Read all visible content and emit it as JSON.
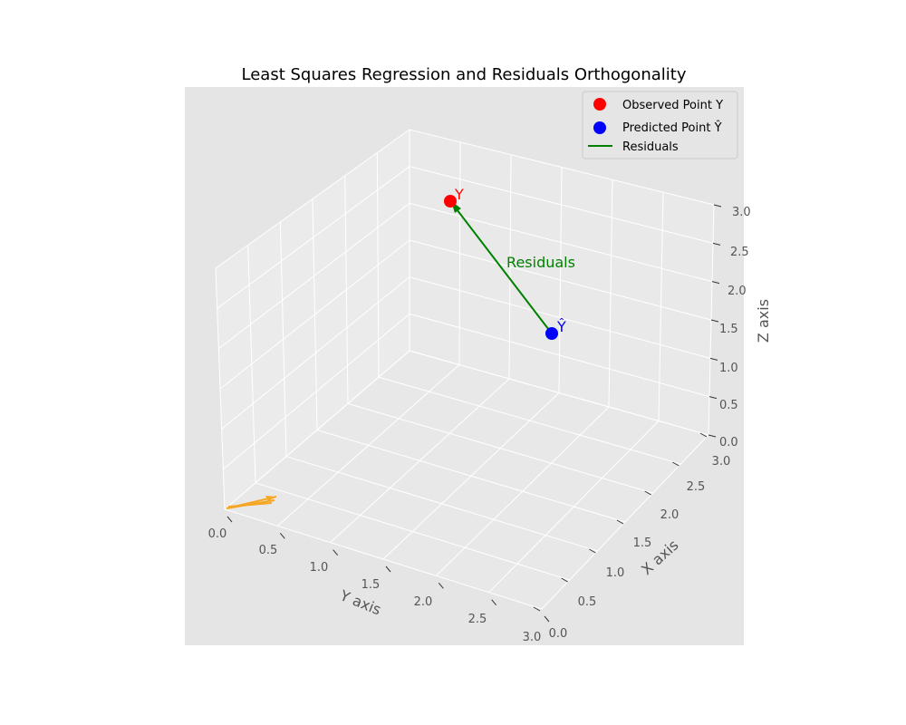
{
  "chart_data": {
    "type": "scatter",
    "projection": "3d",
    "title": "Least Squares Regression and Residuals Orthogonality",
    "xlabel": "X axis",
    "ylabel": "Y axis",
    "zlabel": "Z axis",
    "xlim": [
      0,
      3
    ],
    "ylim": [
      0,
      3
    ],
    "zlim": [
      0,
      3
    ],
    "xticks": [
      "0.0",
      "0.5",
      "1.0",
      "1.5",
      "2.0",
      "2.5",
      "3.0"
    ],
    "yticks": [
      "0.0",
      "0.5",
      "1.0",
      "1.5",
      "2.0",
      "2.5",
      "3.0"
    ],
    "zticks": [
      "0.0",
      "0.5",
      "1.0",
      "1.5",
      "2.0",
      "2.5",
      "3.0"
    ],
    "grid": true,
    "legend_position": "top-right",
    "series": [
      {
        "name": "Observed Point Y",
        "color": "#ff0000",
        "points": [
          {
            "x": 1,
            "y": 2,
            "z": 3
          }
        ],
        "point_label": "Y"
      },
      {
        "name": "Predicted Point Ŷ",
        "color": "#0000ff",
        "points": [
          {
            "x": 1,
            "y": 1,
            "z": 1
          }
        ],
        "point_label": "Ŷ"
      }
    ],
    "residual": {
      "name": "Residuals",
      "color": "#008000",
      "from": {
        "x": 1,
        "y": 1,
        "z": 1
      },
      "to": {
        "x": 1,
        "y": 2,
        "z": 3
      },
      "label": "Residuals"
    },
    "origin_arrows_color": "#f5a623"
  }
}
